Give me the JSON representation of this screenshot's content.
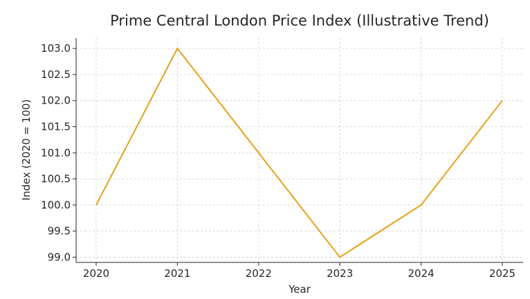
{
  "chart_data": {
    "type": "line",
    "title": "Prime Central London Price Index (Illustrative Trend)",
    "xlabel": "Year",
    "ylabel": "Index (2020 = 100)",
    "x": [
      "2020",
      "2021",
      "2022",
      "2023",
      "2024",
      "2025"
    ],
    "series": [
      {
        "values": [
          100.0,
          103.0,
          101.0,
          99.0,
          100.0,
          102.0
        ],
        "color": "#E6A117"
      }
    ],
    "yticks": [
      "99.0",
      "99.5",
      "100.0",
      "100.5",
      "101.0",
      "101.5",
      "102.0",
      "102.5",
      "103.0"
    ],
    "ylim": [
      98.9,
      103.2
    ],
    "grid": true
  }
}
